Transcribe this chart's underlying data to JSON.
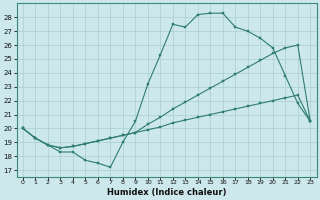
{
  "xlabel": "Humidex (Indice chaleur)",
  "background_color": "#cde8ec",
  "grid_color": "#a8cdd2",
  "line_color": "#2e7d6e",
  "xlim": [
    -0.5,
    23.5
  ],
  "ylim": [
    16.5,
    29.0
  ],
  "yticks": [
    17,
    18,
    19,
    20,
    21,
    22,
    23,
    24,
    25,
    26,
    27,
    28
  ],
  "xticks": [
    0,
    1,
    2,
    3,
    4,
    5,
    6,
    7,
    8,
    9,
    10,
    11,
    12,
    13,
    14,
    15,
    16,
    17,
    18,
    19,
    20,
    21,
    22,
    23
  ],
  "line1_x": [
    0,
    1,
    2,
    3,
    4,
    5,
    6,
    7,
    8,
    9,
    10,
    11,
    12,
    13,
    14,
    15,
    16,
    17,
    18,
    19,
    20,
    21,
    22,
    23
  ],
  "line1_y": [
    20.0,
    19.3,
    18.8,
    18.3,
    18.3,
    17.7,
    17.5,
    17.2,
    19.0,
    20.5,
    23.2,
    25.3,
    27.5,
    27.3,
    28.2,
    28.3,
    28.3,
    27.3,
    27.0,
    26.5,
    25.8,
    23.8,
    21.8,
    20.5
  ],
  "line2_x": [
    0,
    1,
    2,
    3,
    4,
    5,
    6,
    7,
    8,
    9,
    10,
    11,
    12,
    13,
    14,
    15,
    16,
    17,
    18,
    19,
    20,
    21,
    22,
    23
  ],
  "line2_y": [
    20.0,
    19.3,
    18.8,
    18.6,
    18.7,
    18.9,
    19.1,
    19.3,
    19.5,
    19.7,
    20.3,
    20.8,
    21.4,
    21.9,
    22.4,
    22.9,
    23.4,
    23.9,
    24.4,
    24.9,
    25.4,
    25.8,
    26.0,
    20.5
  ],
  "line3_x": [
    0,
    1,
    2,
    3,
    4,
    5,
    6,
    7,
    8,
    9,
    10,
    11,
    12,
    13,
    14,
    15,
    16,
    17,
    18,
    19,
    20,
    21,
    22,
    23
  ],
  "line3_y": [
    20.0,
    19.3,
    18.8,
    18.6,
    18.7,
    18.9,
    19.1,
    19.3,
    19.5,
    19.7,
    19.9,
    20.1,
    20.4,
    20.6,
    20.8,
    21.0,
    21.2,
    21.4,
    21.6,
    21.8,
    22.0,
    22.2,
    22.4,
    20.5
  ]
}
